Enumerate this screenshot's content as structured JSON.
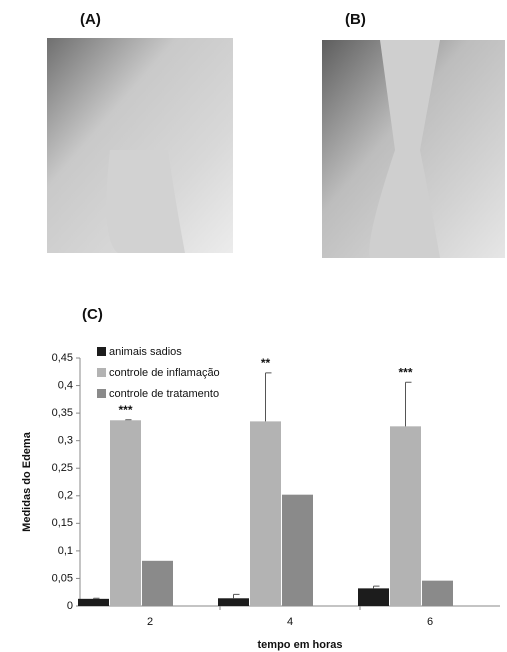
{
  "panel_labels": [
    "(A)",
    "(B)",
    "(C)"
  ],
  "chart_data": {
    "type": "bar",
    "y_label": "Medidas do Edema",
    "x_label": "tempo em horas",
    "categories": [
      "2",
      "4",
      "6"
    ],
    "series": [
      {
        "name": "animais sadios",
        "color": "#1c1c1c",
        "values": [
          0.013,
          0.014,
          0.032
        ],
        "errors": [
          0.001,
          0.007,
          0.004
        ]
      },
      {
        "name": "controle de inflamação",
        "color": "#b3b3b3",
        "values": [
          0.337,
          0.335,
          0.326
        ],
        "errors": [
          0.001,
          0.088,
          0.08
        ]
      },
      {
        "name": "controle de tratamento",
        "color": "#8a8a8a",
        "values": [
          0.082,
          0.202,
          0.046
        ]
      }
    ],
    "annotations": [
      "***",
      "**",
      "***"
    ],
    "ylim": [
      0,
      0.45
    ],
    "yticks": [
      0,
      {
        "value": 0.05,
        "label": "0,05"
      },
      {
        "value": 0.1,
        "label": "0,1"
      },
      {
        "value": 0.15,
        "label": "0,15"
      },
      {
        "value": 0.2,
        "label": "0,2"
      },
      {
        "value": 0.25,
        "label": "0,25"
      },
      {
        "value": 0.3,
        "label": "0,3"
      },
      {
        "value": 0.35,
        "label": "0,35"
      },
      {
        "value": 0.4,
        "label": "0,4"
      },
      {
        "value": 0.45,
        "label": "0,45"
      }
    ],
    "legend": "upper left"
  }
}
